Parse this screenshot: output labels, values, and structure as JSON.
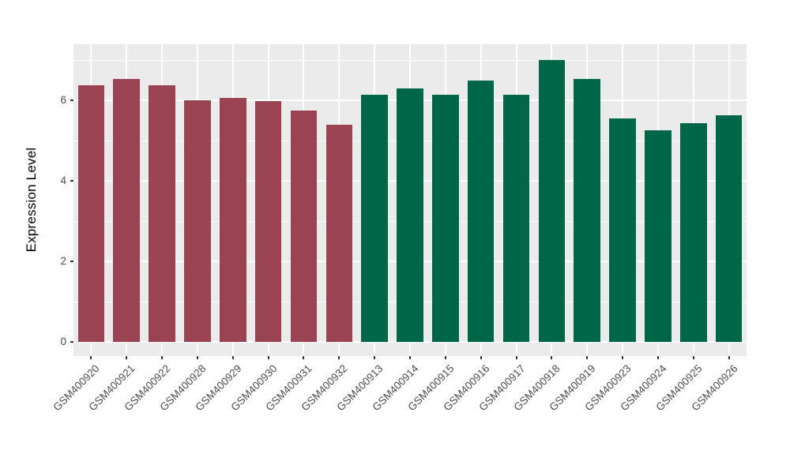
{
  "figure": {
    "background": "#FFFFFF",
    "panel_background": "#EBEBEB",
    "grid_color": "#FFFFFF",
    "tick_mark_color": "#333333",
    "tick_label_color": "#4D4D4D",
    "axis_title_color": "#000000"
  },
  "chart_data": {
    "type": "bar",
    "title": "",
    "xlabel": "",
    "ylabel": "Expression Level",
    "categories": [
      "GSM400920",
      "GSM400921",
      "GSM400922",
      "GSM400928",
      "GSM400929",
      "GSM400930",
      "GSM400931",
      "GSM400932",
      "GSM400913",
      "GSM400914",
      "GSM400915",
      "GSM400916",
      "GSM400917",
      "GSM400918",
      "GSM400919",
      "GSM400923",
      "GSM400924",
      "GSM400925",
      "GSM400926"
    ],
    "values": [
      6.37,
      6.52,
      6.37,
      6.0,
      6.06,
      5.98,
      5.75,
      5.4,
      6.14,
      6.3,
      6.13,
      6.5,
      6.13,
      7.0,
      6.52,
      5.55,
      5.25,
      5.43,
      5.62
    ],
    "groups": [
      0,
      0,
      0,
      0,
      0,
      0,
      0,
      0,
      1,
      1,
      1,
      1,
      1,
      1,
      1,
      1,
      1,
      1,
      1
    ],
    "group_colors": [
      "#9A4352",
      "#006648"
    ],
    "yticks": [
      0,
      2,
      4,
      6
    ],
    "minor_yticks": [
      1,
      3,
      5,
      7
    ],
    "ylim": [
      0,
      7.36
    ],
    "bar_width_fraction": 0.75,
    "grid": "on",
    "legend": "none",
    "x_label_rotation_deg": 45
  }
}
